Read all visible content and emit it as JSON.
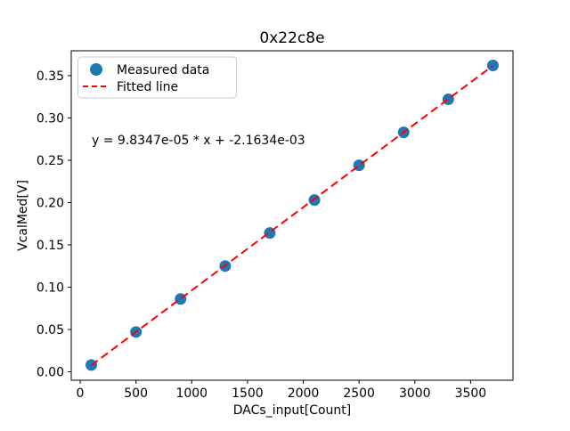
{
  "chart_data": {
    "type": "scatter",
    "title": "0x22c8e",
    "xlabel": "DACs_input[Count]",
    "ylabel": "VcalMed[V]",
    "annotation": "y = 9.8347e-05 * x + -2.1634e-03",
    "fit": {
      "slope": 9.8347e-05,
      "intercept": -0.0021634,
      "x_range": [
        100,
        3700
      ]
    },
    "x": [
      100,
      500,
      900,
      1300,
      1700,
      2100,
      2500,
      2900,
      3300,
      3700
    ],
    "y": [
      0.008,
      0.047,
      0.086,
      0.125,
      0.164,
      0.203,
      0.244,
      0.283,
      0.322,
      0.362
    ],
    "xlim": [
      -80,
      3880
    ],
    "ylim": [
      -0.01,
      0.3794
    ],
    "xticks": {
      "values": [
        0,
        500,
        1000,
        1500,
        2000,
        2500,
        3000,
        3500
      ],
      "labels": [
        "0",
        "500",
        "1000",
        "1500",
        "2000",
        "2500",
        "3000",
        "3500"
      ]
    },
    "yticks": {
      "values": [
        0.0,
        0.05,
        0.1,
        0.15,
        0.2,
        0.25,
        0.3,
        0.35
      ],
      "labels": [
        "0.00",
        "0.05",
        "0.10",
        "0.15",
        "0.20",
        "0.25",
        "0.30",
        "0.35"
      ]
    },
    "legend": [
      {
        "label": "Measured data",
        "type": "marker"
      },
      {
        "label": "Fitted line",
        "type": "dashed-line"
      }
    ],
    "grid": false,
    "legend_position": "upper-left",
    "colors": {
      "marker": "#1f77b4",
      "line": "#ff0000",
      "axes": "#000000",
      "legend_border": "#cccccc",
      "background": "#ffffff"
    }
  }
}
